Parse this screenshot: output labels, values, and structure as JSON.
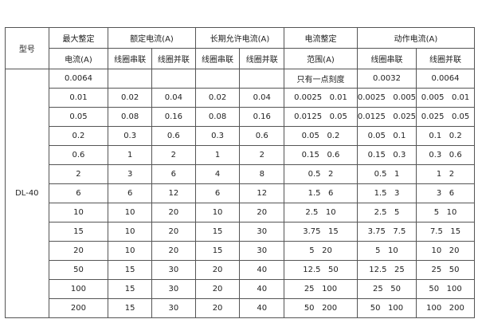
{
  "header": {
    "model": "型号",
    "max_set_1": "最大整定",
    "max_set_2": "电流(A)",
    "rated": "额定电流(A)",
    "long_term": "长期允许电流(A)",
    "range_1": "电流整定",
    "range_2": "范围(A)",
    "action": "动作电流(A)",
    "series": "线圈串联",
    "parallel": "线圈并联"
  },
  "model_value": "DL-40",
  "rows": [
    [
      "0.0064",
      "",
      "",
      "",
      "",
      "只有一点刻度",
      "0.0032",
      "0.0064"
    ],
    [
      "0.01",
      "0.02",
      "0.04",
      "0.02",
      "0.04",
      "0.0025   0.01",
      "0.0025   0.005",
      "0.005   0.01"
    ],
    [
      "0.05",
      "0.08",
      "0.16",
      "0.08",
      "0.16",
      "0.0125   0.05",
      "0.0125   0.025",
      "0.025   0.05"
    ],
    [
      "0.2",
      "0.3",
      "0.6",
      "0.3",
      "0.6",
      "0.05   0.2",
      "0.05   0.1",
      "0.1   0.2"
    ],
    [
      "0.6",
      "1",
      "2",
      "1",
      "2",
      "0.15   0.6",
      "0.15   0.3",
      "0.3   0.6"
    ],
    [
      "2",
      "3",
      "6",
      "4",
      "8",
      "0.5   2",
      "0.5   1",
      "1   2"
    ],
    [
      "6",
      "6",
      "12",
      "6",
      "12",
      "1.5   6",
      "1.5   3",
      "3   6"
    ],
    [
      "10",
      "10",
      "20",
      "10",
      "20",
      "2.5   10",
      "2.5   5",
      "5   10"
    ],
    [
      "15",
      "10",
      "20",
      "15",
      "30",
      "3.75   15",
      "3.75   7.5",
      "7.5   15"
    ],
    [
      "20",
      "10",
      "20",
      "15",
      "30",
      "5   20",
      "5   10",
      "10   20"
    ],
    [
      "50",
      "15",
      "30",
      "20",
      "40",
      "12.5   50",
      "12.5   25",
      "25   50"
    ],
    [
      "100",
      "15",
      "30",
      "20",
      "40",
      "25   100",
      "25   50",
      "50   100"
    ],
    [
      "200",
      "15",
      "30",
      "20",
      "40",
      "50   200",
      "50   100",
      "100   200"
    ]
  ]
}
